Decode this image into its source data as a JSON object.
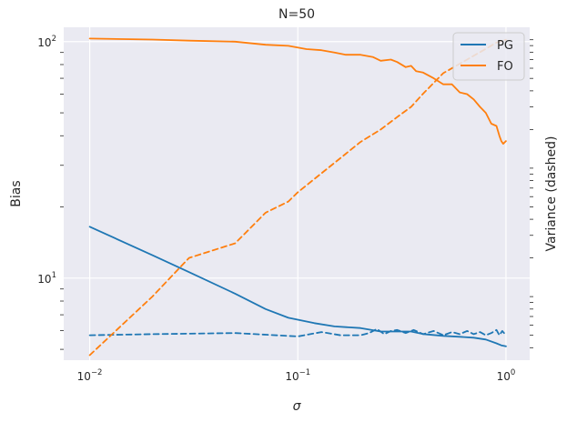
{
  "chart_data": {
    "type": "line",
    "title": "N=50",
    "xlabel": "σ",
    "ylabel": "Bias",
    "y2label": "Variance (dashed)",
    "xscale": "log",
    "yscale": "log",
    "xlim": [
      0.0075,
      1.3
    ],
    "ylim": [
      4.5,
      115
    ],
    "y2lim": [
      0.32,
      125
    ],
    "x_ticks": [
      {
        "base": "10",
        "exp": "−2",
        "value": 0.01
      },
      {
        "base": "10",
        "exp": "−1",
        "value": 0.1
      },
      {
        "base": "10",
        "exp": "0",
        "value": 1
      }
    ],
    "y_ticks": [
      {
        "base": "10",
        "exp": "1",
        "value": 10
      },
      {
        "base": "10",
        "exp": "2",
        "value": 100
      }
    ],
    "grid": true,
    "legend_position": "top-right",
    "colors": {
      "PG": "#1f77b4",
      "FO": "#ff7f0e",
      "background": "#eaeaf2",
      "grid": "#ffffff"
    },
    "series": [
      {
        "name": "PG",
        "style": "solid",
        "axis": "left",
        "x": [
          0.01,
          0.02,
          0.03,
          0.05,
          0.07,
          0.09,
          0.12,
          0.15,
          0.2,
          0.25,
          0.3,
          0.35,
          0.4,
          0.5,
          0.6,
          0.7,
          0.8,
          0.9,
          0.95,
          1.0
        ],
        "values": [
          16.5,
          12.5,
          10.6,
          8.6,
          7.4,
          6.8,
          6.45,
          6.25,
          6.15,
          5.95,
          5.95,
          5.95,
          5.8,
          5.7,
          5.65,
          5.6,
          5.5,
          5.3,
          5.2,
          5.15
        ]
      },
      {
        "name": "FO",
        "style": "solid",
        "axis": "left",
        "x": [
          0.01,
          0.02,
          0.03,
          0.05,
          0.07,
          0.09,
          0.11,
          0.13,
          0.15,
          0.17,
          0.2,
          0.23,
          0.25,
          0.28,
          0.3,
          0.33,
          0.35,
          0.37,
          0.4,
          0.45,
          0.5,
          0.55,
          0.6,
          0.65,
          0.7,
          0.75,
          0.8,
          0.85,
          0.9,
          0.93,
          0.95,
          0.97,
          1.0
        ],
        "values": [
          103,
          102,
          101,
          100,
          97,
          96,
          93,
          92,
          90,
          88,
          88,
          86,
          83,
          84,
          82,
          78,
          79,
          75,
          74,
          70,
          66,
          66,
          61,
          60,
          57,
          53,
          50,
          45,
          44,
          40,
          38,
          37,
          38
        ]
      },
      {
        "name": "",
        "style": "dashed",
        "axis": "right",
        "x": [
          0.01,
          0.02,
          0.05,
          0.1,
          0.13,
          0.16,
          0.2,
          0.22,
          0.24,
          0.26,
          0.28,
          0.3,
          0.33,
          0.36,
          0.4,
          0.45,
          0.5,
          0.55,
          0.6,
          0.65,
          0.7,
          0.75,
          0.8,
          0.85,
          0.9,
          0.93,
          0.96,
          1.0
        ],
        "values": [
          0.5,
          0.51,
          0.52,
          0.49,
          0.53,
          0.5,
          0.5,
          0.52,
          0.56,
          0.51,
          0.54,
          0.55,
          0.52,
          0.55,
          0.51,
          0.54,
          0.5,
          0.53,
          0.51,
          0.54,
          0.51,
          0.53,
          0.5,
          0.52,
          0.55,
          0.5,
          0.54,
          0.5
        ]
      },
      {
        "name": "",
        "style": "dashed",
        "axis": "right",
        "x": [
          0.01,
          0.02,
          0.03,
          0.05,
          0.07,
          0.09,
          0.1,
          0.15,
          0.2,
          0.25,
          0.3,
          0.35,
          0.4,
          0.5,
          0.6,
          0.7,
          0.8,
          0.9,
          1.0
        ],
        "values": [
          0.35,
          1.0,
          2.0,
          2.6,
          4.5,
          5.5,
          6.5,
          11,
          16,
          20,
          25,
          30,
          38,
          55,
          65,
          75,
          85,
          95,
          100
        ]
      }
    ]
  }
}
